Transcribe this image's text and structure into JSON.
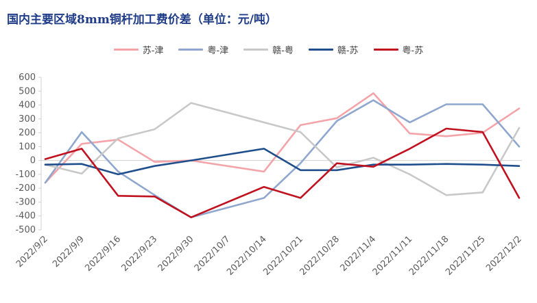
{
  "chart_data": {
    "type": "line",
    "title": "国内主要区域8mm铜杆加工费价差（单位：元/吨）",
    "categories": [
      "2022/9/2",
      "2022/9/9",
      "2022/9/16",
      "2022/9/23",
      "2022/9/30",
      "2022/10/7",
      "2022/10/14",
      "2022/10/21",
      "2022/10/28",
      "2022/11/4",
      "2022/11/11",
      "2022/11/18",
      "2022/11/25",
      "2022/12/2"
    ],
    "ylim": [
      -500,
      600
    ],
    "yticks": [
      600,
      500,
      400,
      300,
      200,
      100,
      0,
      -100,
      -200,
      -300,
      -400,
      -500
    ],
    "legend_position": "top",
    "grid": false,
    "series": [
      {
        "name": "苏-津",
        "color": "#f4a3a8",
        "values": [
          -160,
          120,
          150,
          -10,
          0,
          null,
          -80,
          255,
          305,
          485,
          195,
          175,
          200,
          375
        ]
      },
      {
        "name": "粤-津",
        "color": "#8fa6cf",
        "values": [
          -160,
          205,
          -80,
          -250,
          -410,
          null,
          -270,
          -20,
          285,
          435,
          275,
          405,
          405,
          100
        ]
      },
      {
        "name": "赣-粤",
        "color": "#c8c8c8",
        "values": [
          -30,
          -95,
          160,
          225,
          415,
          null,
          null,
          205,
          -50,
          20,
          -100,
          -250,
          -230,
          235
        ]
      },
      {
        "name": "赣-苏",
        "color": "#1f4e8c",
        "values": [
          -30,
          -25,
          -100,
          -40,
          0,
          null,
          85,
          -70,
          -70,
          -30,
          -30,
          -25,
          -30,
          -40
        ]
      },
      {
        "name": "粤-苏",
        "color": "#c0111f",
        "values": [
          10,
          85,
          -255,
          -260,
          -410,
          null,
          -190,
          -270,
          -20,
          -45,
          85,
          230,
          205,
          -270
        ]
      }
    ]
  }
}
